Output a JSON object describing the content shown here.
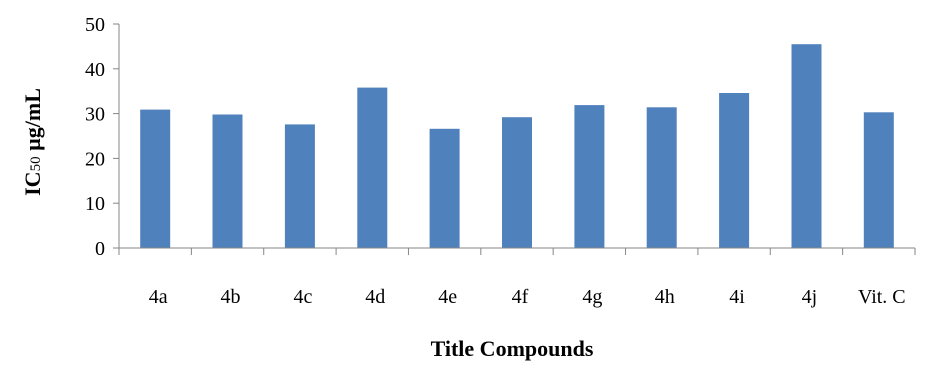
{
  "chart_data": {
    "type": "bar",
    "categories": [
      "4a",
      "4b",
      "4c",
      "4d",
      "4e",
      "4f",
      "4g",
      "4h",
      "4i",
      "4j",
      "Vit. C"
    ],
    "values": [
      30.9,
      29.8,
      27.6,
      35.8,
      26.6,
      29.2,
      31.9,
      31.4,
      34.6,
      45.5,
      30.3
    ],
    "xlabel": "Title Compounds",
    "ylabel": {
      "prefix": "IC",
      "subscript": "50",
      "suffix": " µg/mL"
    },
    "ylim": [
      0,
      50
    ],
    "yticks": [
      "0",
      "10",
      "20",
      "30",
      "40",
      "50"
    ],
    "grid": false,
    "legend": "none",
    "colors": {
      "bar": "#4F81BD",
      "axis": "#868686"
    }
  }
}
